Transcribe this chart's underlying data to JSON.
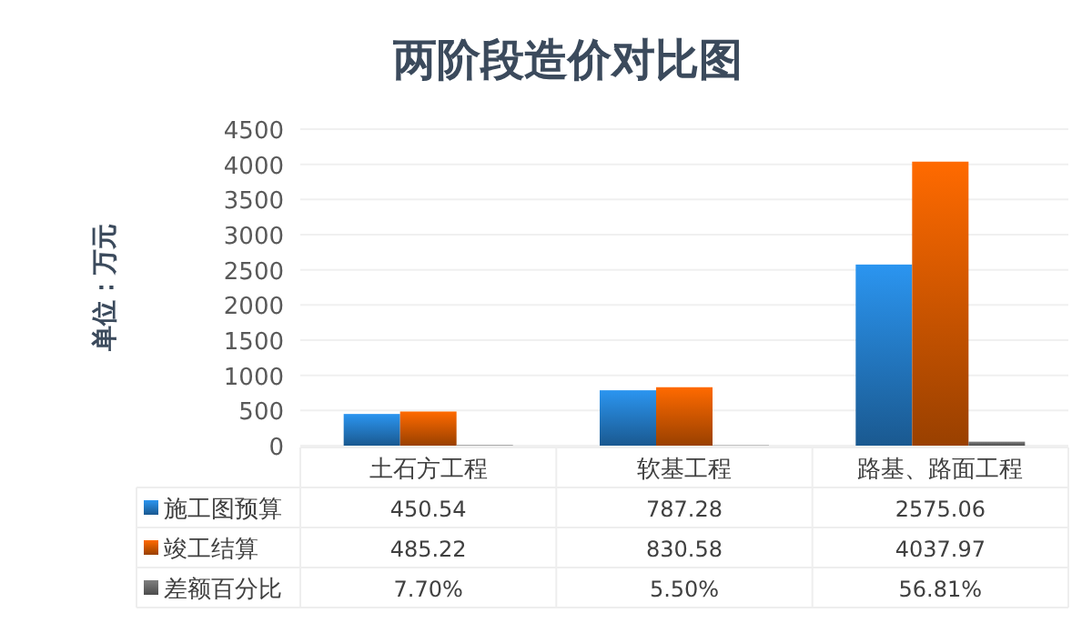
{
  "chart_data": {
    "type": "bar",
    "title": "两阶段造价对比图",
    "ylabel": "单位：万元",
    "categories": [
      "土石方工程",
      "软基工程",
      "路基、路面工程"
    ],
    "series": [
      {
        "name": "施工图预算",
        "color": "#2b95f0",
        "values": [
          450.54,
          787.28,
          2575.06
        ],
        "value_labels": [
          "450.54",
          "787.28",
          "2575.06"
        ]
      },
      {
        "name": "竣工结算",
        "color": "#ff6a00",
        "values": [
          485.22,
          830.58,
          4037.97
        ],
        "value_labels": [
          "485.22",
          "830.58",
          "4037.97"
        ]
      },
      {
        "name": "差额百分比",
        "color": "#7f7f7f",
        "values": [
          7.7,
          5.5,
          56.81
        ],
        "value_labels": [
          "7.70%",
          "5.50%",
          "56.81%"
        ]
      }
    ],
    "ylim": [
      0,
      4500
    ],
    "yticks": [
      0,
      500,
      1000,
      1500,
      2000,
      2500,
      3000,
      3500,
      4000,
      4500
    ],
    "grid": "y",
    "legend": "bottom"
  }
}
